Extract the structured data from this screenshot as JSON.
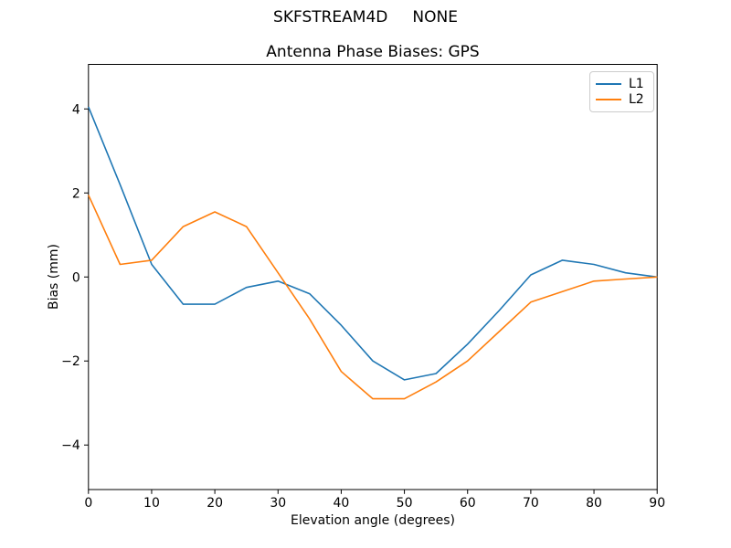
{
  "suptitle": "SKFSTREAM4D     NONE",
  "chart_data": {
    "type": "line",
    "title": "Antenna Phase Biases: GPS",
    "xlabel": "Elevation angle (degrees)",
    "ylabel": "Bias (mm)",
    "xlim": [
      0,
      90
    ],
    "ylim": [
      -5.06,
      5.06
    ],
    "xticks": [
      0,
      10,
      20,
      30,
      40,
      50,
      60,
      70,
      80,
      90
    ],
    "yticks": [
      -4,
      -2,
      0,
      2,
      4
    ],
    "grid": false,
    "legend_position": "upper right",
    "x": [
      0,
      5,
      10,
      15,
      20,
      25,
      30,
      35,
      40,
      45,
      50,
      55,
      60,
      65,
      70,
      75,
      80,
      85,
      90
    ],
    "series": [
      {
        "name": "L1",
        "color": "#1f77b4",
        "values": [
          4.05,
          2.2,
          0.3,
          -0.65,
          -0.65,
          -0.25,
          -0.1,
          -0.4,
          -1.15,
          -2.0,
          -2.45,
          -2.3,
          -1.6,
          -0.8,
          0.05,
          0.4,
          0.3,
          0.1,
          0.0
        ]
      },
      {
        "name": "L2",
        "color": "#ff7f0e",
        "values": [
          1.95,
          0.3,
          0.4,
          1.2,
          1.55,
          1.2,
          0.1,
          -1.0,
          -2.25,
          -2.9,
          -2.9,
          -2.5,
          -2.0,
          -1.3,
          -0.6,
          -0.35,
          -0.1,
          -0.05,
          0.0
        ]
      }
    ],
    "frame_color": "#000000",
    "background_color": "#ffffff"
  }
}
